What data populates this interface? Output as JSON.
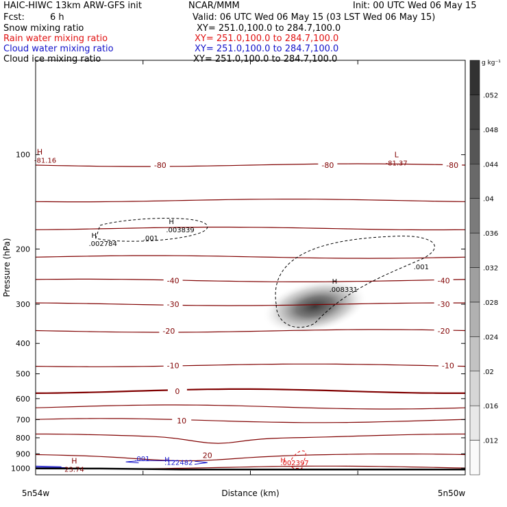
{
  "header": {
    "model": "HAIC-HIWC 13km ARW-GFS init",
    "center": "NCAR/MMM",
    "init": "Init: 00 UTC Wed 06 May 15",
    "fcst_label": "Fcst:",
    "fcst_value": "6 h",
    "valid": "Valid: 06 UTC Wed 06 May 15 (03 LST Wed 06 May 15)",
    "fields": [
      {
        "name": "Snow mixing ratio",
        "xy": "XY= 251.0,100.0 to 284.7,100.0",
        "color": "#000000"
      },
      {
        "name": "Rain water mixing ratio",
        "xy": "XY= 251.0,100.0 to 284.7,100.0",
        "color": "#e01010"
      },
      {
        "name": "Cloud water mixing ratio",
        "xy": "XY= 251.0,100.0 to 284.7,100.0",
        "color": "#1010c8"
      },
      {
        "name": "Cloud ice mixing ratio",
        "xy": "XY= 251.0,100.0 to 284.7,100.0",
        "color": "#000000"
      }
    ]
  },
  "chart_data": {
    "type": "cross-section",
    "xlabel": "Distance (km)",
    "x_endpoints": [
      "5n54w",
      "5n50w"
    ],
    "x_ticks": [
      0,
      0.25,
      0.5,
      0.75,
      1.0
    ],
    "ylabel": "Pressure (hPa)",
    "y_scale": "log",
    "ylim": [
      1050,
      50
    ],
    "y_ticks": [
      100,
      200,
      300,
      400,
      500,
      600,
      700,
      800,
      900,
      1000
    ],
    "temperature_color": "#800000",
    "temperature_contours": [
      {
        "value": -80,
        "p": 108,
        "labels": [
          {
            "text": "-80",
            "x": 0.68
          },
          {
            "text": "-80",
            "x": 0.29
          },
          {
            "text": "-80",
            "x": 0.97
          }
        ]
      },
      {
        "value": -70,
        "p": 140,
        "labels": []
      },
      {
        "value": -60,
        "p": 172,
        "labels": []
      },
      {
        "value": -50,
        "p": 212,
        "labels": []
      },
      {
        "value": -40,
        "p": 252,
        "labels": [
          {
            "text": "-40",
            "x": 0.32
          },
          {
            "text": "-40",
            "x": 0.95
          }
        ]
      },
      {
        "value": -30,
        "p": 300,
        "labels": [
          {
            "text": "-30",
            "x": 0.32
          },
          {
            "text": "-30",
            "x": 0.95
          }
        ]
      },
      {
        "value": -20,
        "p": 365,
        "labels": [
          {
            "text": "-20",
            "x": 0.31
          },
          {
            "text": "-20",
            "x": 0.95
          }
        ]
      },
      {
        "value": -10,
        "p": 470,
        "labels": [
          {
            "text": "-10",
            "x": 0.32
          },
          {
            "text": "-10",
            "x": 0.96
          }
        ]
      },
      {
        "value": 0,
        "p": 568,
        "bold": true,
        "labels": [
          {
            "text": "0",
            "x": 0.33
          }
        ]
      },
      {
        "value": 5,
        "p": 638,
        "labels": []
      },
      {
        "value": 10,
        "p": 705,
        "labels": [
          {
            "text": "10",
            "x": 0.34
          }
        ]
      },
      {
        "value": 15,
        "p": 790,
        "labels": []
      },
      {
        "value": 20,
        "p": 910,
        "labels": [
          {
            "text": "20",
            "x": 0.4
          }
        ]
      },
      {
        "value": 25,
        "p": 995,
        "labels": []
      }
    ],
    "temperature_extrema": [
      {
        "type": "H",
        "value": "-81.16",
        "x": 0.0,
        "p": 102
      },
      {
        "type": "L",
        "value": "-81.37",
        "x": 0.84,
        "p": 104
      },
      {
        "type": "H",
        "value": "23.74",
        "x": 0.09,
        "p": 985
      }
    ],
    "cloud_ice": {
      "contour": ".001",
      "maxima": [
        {
          "text": ".002784",
          "x": 0.13,
          "p": 188
        },
        {
          "text": ".003839",
          "x": 0.31,
          "p": 170
        },
        {
          "text": ".008331",
          "x": 0.69,
          "p": 263
        }
      ]
    },
    "cloud_water": {
      "contour": ".001",
      "maximum": ".122482",
      "x": 0.34,
      "p": 972
    },
    "rain_water": {
      "maximum": ".002397",
      "x": 0.6,
      "p": 975
    },
    "snow_shading": {
      "unit": "g kg⁻¹",
      "levels": [
        ".012",
        ".016",
        ".02",
        ".024",
        ".028",
        ".032",
        ".036",
        ".04",
        ".044",
        ".048",
        ".052"
      ],
      "max_x": 0.65,
      "max_p": 305
    }
  }
}
